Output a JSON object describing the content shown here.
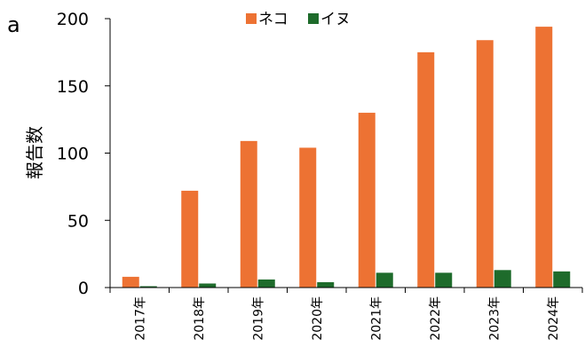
{
  "panel_label": "a",
  "chart_data": {
    "type": "bar",
    "categories": [
      "2017年",
      "2018年",
      "2019年",
      "2020年",
      "2021年",
      "2022年",
      "2023年",
      "2024年"
    ],
    "series": [
      {
        "name": "ネコ",
        "values": [
          8,
          72,
          109,
          104,
          130,
          175,
          184,
          194
        ],
        "color": "#ed7233"
      },
      {
        "name": "イヌ",
        "values": [
          1,
          3,
          6,
          4,
          11,
          11,
          13,
          12
        ],
        "color": "#1e6b2b"
      }
    ],
    "ylabel": "報告数",
    "ylim": [
      0,
      200
    ],
    "yticks": [
      0,
      50,
      100,
      150,
      200
    ],
    "grid": false,
    "legend": "top"
  }
}
